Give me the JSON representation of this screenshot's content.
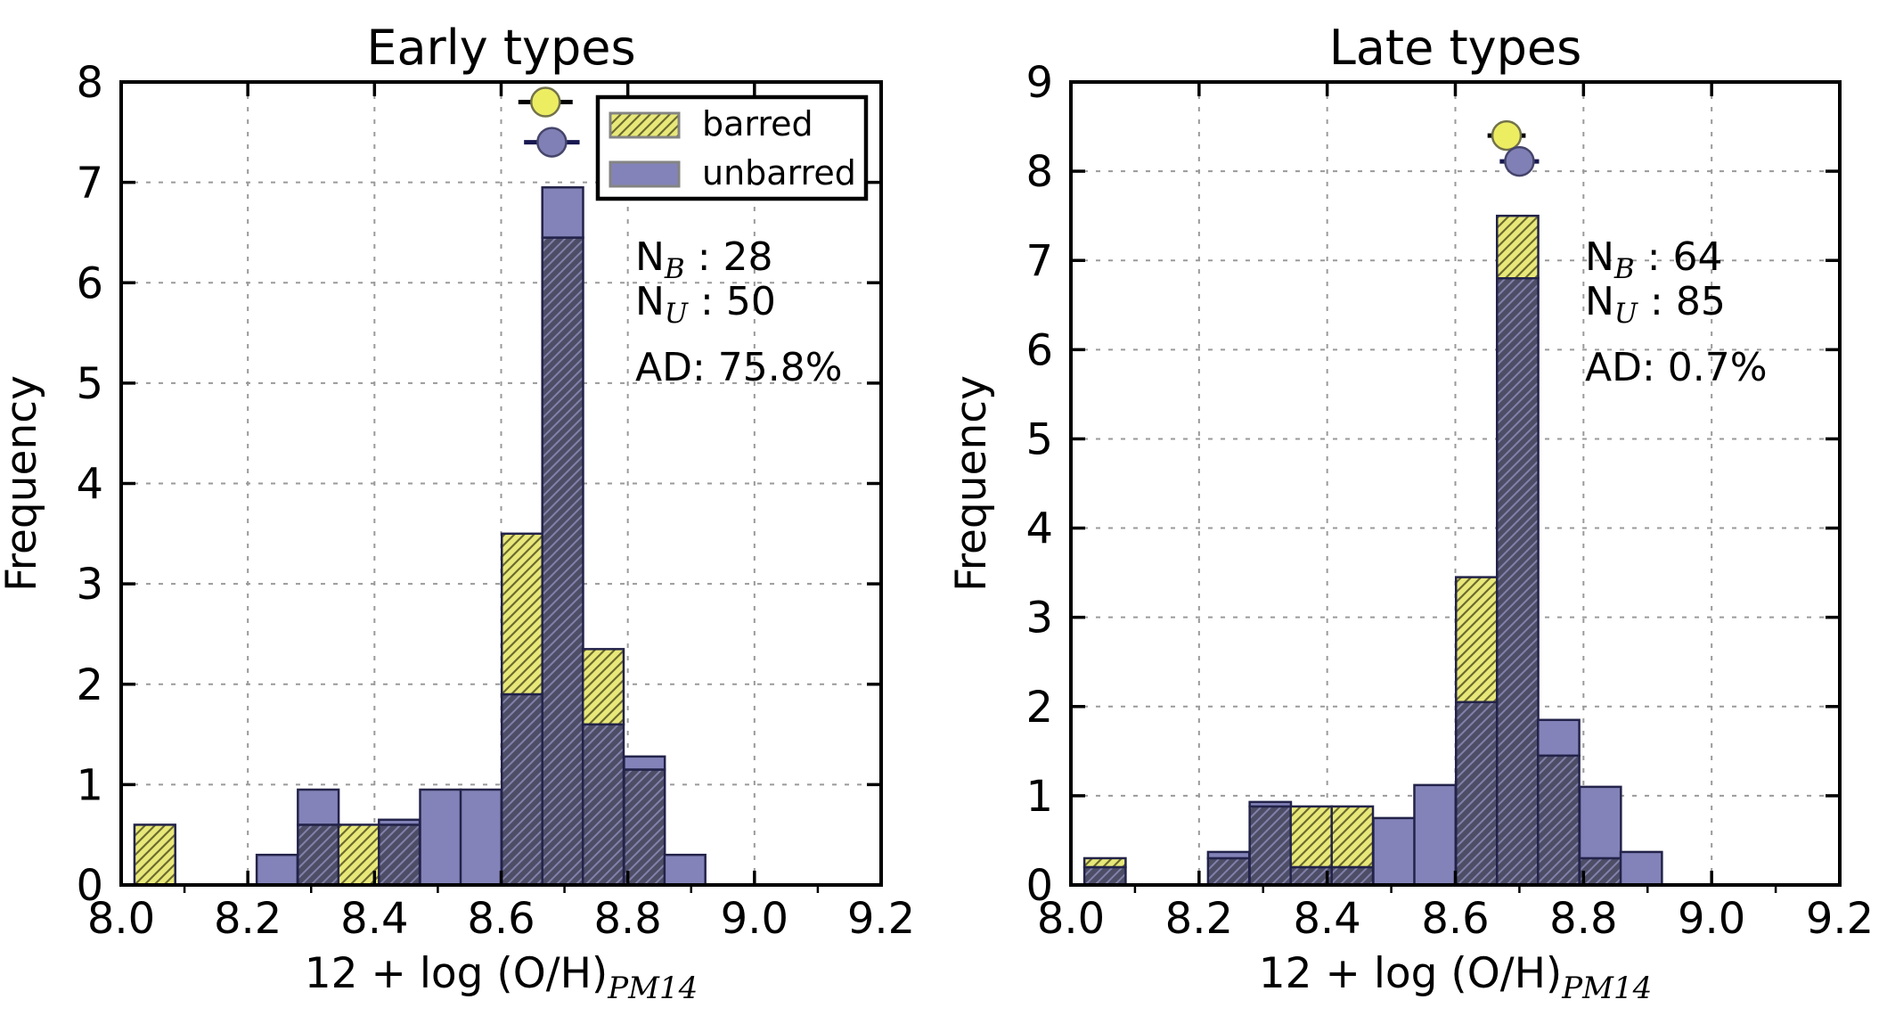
{
  "figure": {
    "background": "#ffffff",
    "kind": "two-panel histogram comparison"
  },
  "style": {
    "spine_color": "#000000",
    "grid_color": "#9a9a9a",
    "text_color": "#000000",
    "bar_edge": "#23234a",
    "barred_fill": "#e8e87a",
    "barred_hatch": "#6b6b2f",
    "unbarred_fill": "#8383b9",
    "overlap_fill": "#4d4d66",
    "overlap_hatch": "#8181ab",
    "legend_border": "#000000",
    "swatch_edge": "#848484",
    "marker_barred_fill": "#eded62",
    "marker_barred_edge": "#72724a",
    "marker_barred_err": "#000000",
    "marker_unbarred_fill": "#8080b6",
    "marker_unbarred_edge": "#45456b",
    "marker_unbarred_err": "#181850"
  },
  "legend": {
    "items": [
      {
        "label": "barred",
        "series": "barred"
      },
      {
        "label": "unbarred",
        "series": "unbarred"
      }
    ]
  },
  "chart_data": [
    {
      "type": "bar",
      "subtype": "overlapping-histogram",
      "title": "Early types",
      "xlabel": "12 + log (O/H)",
      "xlabel_subscript": "PM14",
      "ylabel": "Frequency",
      "xlim": [
        8.0,
        9.2
      ],
      "ylim": [
        0,
        8
      ],
      "grid": true,
      "legend_position": "upper right",
      "xtick_labels": [
        "8.0",
        "8.2",
        "8.4",
        "8.6",
        "8.8",
        "9.0",
        "9.2"
      ],
      "ytick_labels": [
        "0",
        "1",
        "2",
        "3",
        "4",
        "5",
        "6",
        "7",
        "8"
      ],
      "bin_width": 0.0644,
      "bin_left_edges": [
        8.021,
        8.085,
        8.15,
        8.214,
        8.279,
        8.343,
        8.407,
        8.472,
        8.536,
        8.601,
        8.665,
        8.729,
        8.794,
        8.858
      ],
      "series": [
        {
          "name": "barred",
          "values": [
            0.6,
            0,
            0,
            0,
            0.6,
            0.6,
            0.6,
            0,
            0,
            3.5,
            6.45,
            2.35,
            1.15,
            0
          ]
        },
        {
          "name": "unbarred",
          "values": [
            0,
            0,
            0,
            0.3,
            0.95,
            0,
            0.65,
            0.95,
            0.95,
            1.9,
            6.95,
            1.6,
            1.28,
            0.3
          ]
        }
      ],
      "stats": [
        {
          "label": "N",
          "subscript": "B",
          "value": " : 28"
        },
        {
          "label": "N",
          "subscript": "U",
          "value": " : 50"
        },
        {
          "label": "AD: 75.8%",
          "subscript": "",
          "value": ""
        }
      ],
      "markers": [
        {
          "series": "barred",
          "x": 8.67,
          "y": 7.8,
          "xerr": 0.026
        },
        {
          "series": "unbarred",
          "x": 8.68,
          "y": 7.4,
          "xerr": 0.027
        }
      ],
      "show_legend": true
    },
    {
      "type": "bar",
      "subtype": "overlapping-histogram",
      "title": "Late types",
      "xlabel": "12 + log (O/H)",
      "xlabel_subscript": "PM14",
      "ylabel": "Frequency",
      "xlim": [
        8.0,
        9.2
      ],
      "ylim": [
        0,
        9
      ],
      "grid": true,
      "legend_position": "none",
      "xtick_labels": [
        "8.0",
        "8.2",
        "8.4",
        "8.6",
        "8.8",
        "9.0",
        "9.2"
      ],
      "ytick_labels": [
        "0",
        "1",
        "2",
        "3",
        "4",
        "5",
        "6",
        "7",
        "8",
        "9"
      ],
      "bin_width": 0.0644,
      "bin_left_edges": [
        8.021,
        8.085,
        8.15,
        8.214,
        8.279,
        8.343,
        8.407,
        8.472,
        8.536,
        8.601,
        8.665,
        8.729,
        8.794,
        8.858
      ],
      "series": [
        {
          "name": "barred",
          "values": [
            0.3,
            0,
            0,
            0.3,
            0.88,
            0.88,
            0.88,
            0,
            0,
            3.45,
            7.5,
            1.45,
            0.3,
            0
          ]
        },
        {
          "name": "unbarred",
          "values": [
            0.2,
            0,
            0,
            0.37,
            0.93,
            0.2,
            0.2,
            0.75,
            1.12,
            2.05,
            6.8,
            1.85,
            1.1,
            0.37
          ]
        }
      ],
      "stats": [
        {
          "label": "N",
          "subscript": "B",
          "value": " : 64"
        },
        {
          "label": "N",
          "subscript": "U",
          "value": " : 85"
        },
        {
          "label": "AD: 0.7%",
          "subscript": "",
          "value": ""
        }
      ],
      "markers": [
        {
          "series": "barred",
          "x": 8.68,
          "y": 8.4,
          "xerr": 0.013
        },
        {
          "series": "unbarred",
          "x": 8.7,
          "y": 8.11,
          "xerr": 0.014
        }
      ],
      "show_legend": false
    }
  ]
}
